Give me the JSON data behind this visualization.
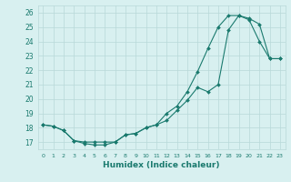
{
  "xlabel": "Humidex (Indice chaleur)",
  "line1_x": [
    0,
    1,
    2,
    3,
    4,
    5,
    6,
    7,
    8,
    9,
    10,
    11,
    12,
    13,
    14,
    15,
    16,
    17,
    18,
    19,
    20,
    21,
    22,
    23
  ],
  "line1_y": [
    18.2,
    18.1,
    17.8,
    17.1,
    16.9,
    16.8,
    16.8,
    17.0,
    17.5,
    17.6,
    18.0,
    18.2,
    19.0,
    19.5,
    20.5,
    21.9,
    23.5,
    25.0,
    25.8,
    25.8,
    25.5,
    24.0,
    22.8,
    22.8
  ],
  "line2_x": [
    0,
    1,
    2,
    3,
    4,
    5,
    6,
    7,
    8,
    9,
    10,
    11,
    12,
    13,
    14,
    15,
    16,
    17,
    18,
    19,
    20,
    21,
    22,
    23
  ],
  "line2_y": [
    18.2,
    18.1,
    17.8,
    17.1,
    17.0,
    17.0,
    17.0,
    17.0,
    17.5,
    17.6,
    18.0,
    18.2,
    18.5,
    19.2,
    19.9,
    20.8,
    20.5,
    21.0,
    24.8,
    25.8,
    25.6,
    25.2,
    22.8,
    22.8
  ],
  "line_color": "#1a7a6e",
  "bg_color": "#d8f0f0",
  "grid_color": "#b8d8d8",
  "xlim": [
    -0.5,
    23.5
  ],
  "ylim": [
    16.5,
    26.5
  ],
  "xticks": [
    0,
    1,
    2,
    3,
    4,
    5,
    6,
    7,
    8,
    9,
    10,
    11,
    12,
    13,
    14,
    15,
    16,
    17,
    18,
    19,
    20,
    21,
    22,
    23
  ],
  "yticks": [
    17,
    18,
    19,
    20,
    21,
    22,
    23,
    24,
    25,
    26
  ]
}
